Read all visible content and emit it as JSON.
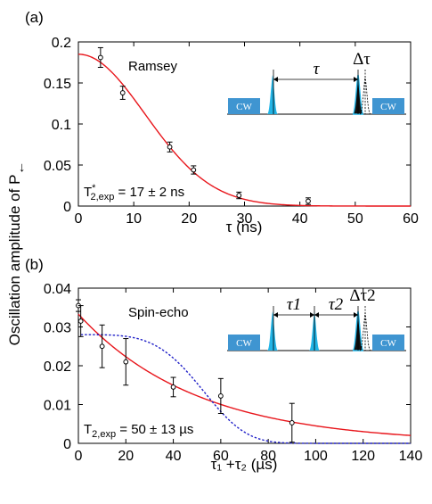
{
  "figure": {
    "ylabel": "Oscillation amplitude of P",
    "ylabel_sub": "←"
  },
  "chart_data": [
    {
      "type": "scatter",
      "panel_label": "(a)",
      "title": "Ramsey",
      "xlabel": "τ (ns)",
      "ylabel": "Oscillation amplitude of P←",
      "xlim": [
        0,
        60
      ],
      "ylim": [
        0,
        0.2
      ],
      "xticks": [
        0,
        10,
        20,
        30,
        40,
        50,
        60
      ],
      "yticks": [
        0,
        0.05,
        0.1,
        0.15,
        0.2
      ],
      "xtick_labels": [
        "0",
        "10",
        "20",
        "30",
        "40",
        "50",
        "60"
      ],
      "ytick_labels": [
        "0",
        "0.05",
        "0.1",
        "0.15",
        "0.2"
      ],
      "grid": false,
      "annotation": {
        "base": "T",
        "sup": "*",
        "sub": "2,exp",
        "rest": " = 17 ± 2 ns"
      },
      "inset": {
        "left_label": "CW",
        "right_label": "CW",
        "delay_labels": [
          "τ"
        ],
        "shift_label": "Δτ"
      },
      "series": [
        {
          "kind": "data",
          "color": "#000000",
          "x": [
            4,
            8,
            16.5,
            20.8,
            29,
            41.5
          ],
          "y": [
            0.181,
            0.138,
            0.072,
            0.044,
            0.013,
            0.006
          ],
          "err": [
            0.012,
            0.008,
            0.006,
            0.005,
            0.004,
            0.004
          ]
        },
        {
          "kind": "fit",
          "style": "solid",
          "color": "#e8151b",
          "model": "gaussian",
          "amplitude": 0.185,
          "T": 17
        }
      ]
    },
    {
      "type": "scatter",
      "panel_label": "(b)",
      "title": "Spin-echo",
      "xlabel": "τ₁ +τ₂ (µs)",
      "ylabel": "Oscillation amplitude of P←",
      "xlim": [
        0,
        140
      ],
      "ylim": [
        0,
        0.04
      ],
      "xticks": [
        0,
        20,
        40,
        60,
        80,
        100,
        120,
        140
      ],
      "yticks": [
        0,
        0.01,
        0.02,
        0.03,
        0.04
      ],
      "xtick_labels": [
        "0",
        "20",
        "40",
        "60",
        "80",
        "100",
        "120",
        "140"
      ],
      "ytick_labels": [
        "0",
        "0.01",
        "0.02",
        "0.03",
        "0.04"
      ],
      "grid": false,
      "annotation": {
        "base": "T",
        "sup": "",
        "sub": "2,exp",
        "rest": " = 50 ± 13 µs"
      },
      "inset": {
        "left_label": "CW",
        "right_label": "CW",
        "delay_labels": [
          "τ1",
          "τ2"
        ],
        "shift_label": "Δτ2"
      },
      "series": [
        {
          "kind": "data",
          "color": "#000000",
          "x": [
            0,
            1,
            10,
            20,
            40,
            60,
            90
          ],
          "y": [
            0.0355,
            0.0315,
            0.025,
            0.021,
            0.0145,
            0.0122,
            0.0053
          ],
          "err": [
            0.0015,
            0.004,
            0.0055,
            0.006,
            0.0025,
            0.0045,
            0.005
          ]
        },
        {
          "kind": "fit",
          "style": "solid",
          "color": "#e8151b",
          "model": "exponential",
          "amplitude": 0.0333,
          "T": 50
        },
        {
          "kind": "fit",
          "style": "dashed",
          "color": "#1f1fc8",
          "model": "gaussian4",
          "amplitude": 0.028,
          "T": 57
        }
      ]
    }
  ]
}
